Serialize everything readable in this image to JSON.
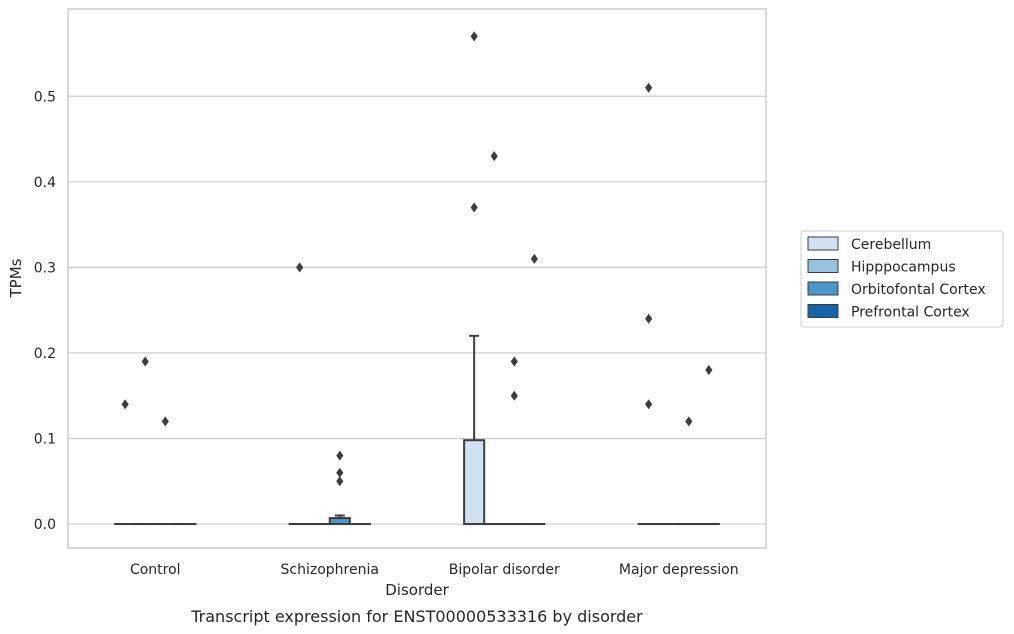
{
  "chart_data": {
    "type": "box",
    "title": "",
    "caption": "Transcript expression for ENST00000533316 by disorder",
    "xlabel": "Disorder",
    "ylabel": "TPMs",
    "ylim": [
      -0.028,
      0.602
    ],
    "yticks": [
      0.0,
      0.1,
      0.2,
      0.3,
      0.4,
      0.5
    ],
    "ytick_labels": [
      "0.0",
      "0.1",
      "0.2",
      "0.3",
      "0.4",
      "0.5"
    ],
    "grid": true,
    "legend_placement": "center-right, outside",
    "categories": [
      "Control",
      "Schizophrenia",
      "Bipolar disorder",
      "Major depression"
    ],
    "series": [
      {
        "name": "Cerebellum",
        "color": "#d0e1f2",
        "boxes": [
          {
            "q1": 0,
            "median": 0,
            "q3": 0,
            "whisker_low": 0,
            "whisker_high": 0,
            "outliers": [
              0.14
            ]
          },
          {
            "q1": 0,
            "median": 0,
            "q3": 0,
            "whisker_low": 0,
            "whisker_high": 0,
            "outliers": [
              0.3
            ]
          },
          {
            "q1": 0,
            "median": 0,
            "q3": 0.098,
            "whisker_low": 0,
            "whisker_high": 0.22,
            "outliers": [
              0.37,
              0.57
            ]
          },
          {
            "q1": 0,
            "median": 0,
            "q3": 0,
            "whisker_low": 0,
            "whisker_high": 0,
            "outliers": [
              0.14,
              0.24,
              0.51
            ]
          }
        ]
      },
      {
        "name": "Hipppocampus",
        "color": "#94c4df",
        "boxes": [
          {
            "q1": 0,
            "median": 0,
            "q3": 0,
            "whisker_low": 0,
            "whisker_high": 0,
            "outliers": [
              0.19
            ]
          },
          {
            "q1": 0,
            "median": 0,
            "q3": 0,
            "whisker_low": 0,
            "whisker_high": 0,
            "outliers": []
          },
          {
            "q1": 0,
            "median": 0,
            "q3": 0,
            "whisker_low": 0,
            "whisker_high": 0,
            "outliers": [
              0.43
            ]
          },
          {
            "q1": 0,
            "median": 0,
            "q3": 0,
            "whisker_low": 0,
            "whisker_high": 0,
            "outliers": []
          }
        ]
      },
      {
        "name": "Orbitofontal Cortex",
        "color": "#4a98c9",
        "boxes": [
          {
            "q1": 0,
            "median": 0,
            "q3": 0,
            "whisker_low": 0,
            "whisker_high": 0,
            "outliers": [
              0.12
            ]
          },
          {
            "q1": 0,
            "median": 0,
            "q3": 0.007,
            "whisker_low": 0,
            "whisker_high": 0.01,
            "outliers": [
              0.05,
              0.06,
              0.08
            ]
          },
          {
            "q1": 0,
            "median": 0,
            "q3": 0,
            "whisker_low": 0,
            "whisker_high": 0,
            "outliers": [
              0.15,
              0.19
            ]
          },
          {
            "q1": 0,
            "median": 0,
            "q3": 0,
            "whisker_low": 0,
            "whisker_high": 0,
            "outliers": [
              0.12
            ]
          }
        ]
      },
      {
        "name": "Prefrontal Cortex",
        "color": "#1764ab",
        "boxes": [
          {
            "q1": 0,
            "median": 0,
            "q3": 0,
            "whisker_low": 0,
            "whisker_high": 0,
            "outliers": []
          },
          {
            "q1": 0,
            "median": 0,
            "q3": 0,
            "whisker_low": 0,
            "whisker_high": 0,
            "outliers": []
          },
          {
            "q1": 0,
            "median": 0,
            "q3": 0,
            "whisker_low": 0,
            "whisker_high": 0,
            "outliers": [
              0.31
            ]
          },
          {
            "q1": 0,
            "median": 0,
            "q3": 0,
            "whisker_low": 0,
            "whisker_high": 0,
            "outliers": [
              0.18
            ]
          }
        ]
      }
    ],
    "style": {
      "grid_color": "#cccccc",
      "spine_color": "#cccccc",
      "line_color": "#3d3d3d",
      "outlier_color": "#3d3d3d"
    }
  }
}
